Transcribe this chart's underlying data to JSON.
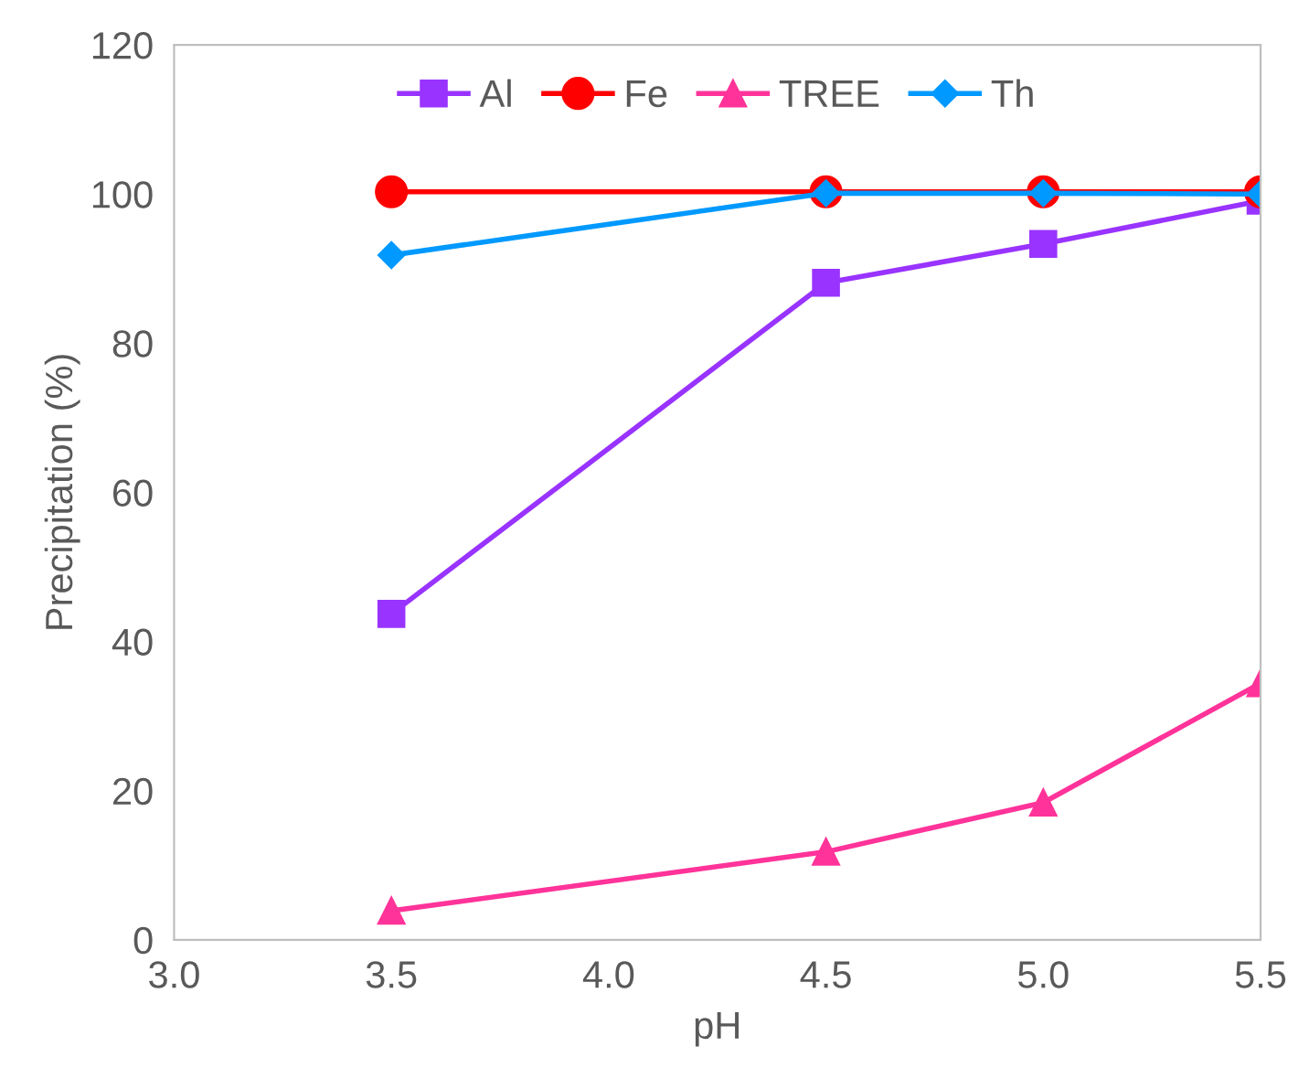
{
  "chart_data": {
    "type": "line",
    "xlabel": "pH",
    "ylabel": "Precipitation (%)",
    "x": [
      3.5,
      4.5,
      5.0,
      5.5
    ],
    "xlim": [
      3.0,
      5.5
    ],
    "xticks": [
      {
        "value": 3.0,
        "label": "3.0"
      },
      {
        "value": 3.5,
        "label": "3.5"
      },
      {
        "value": 4.0,
        "label": "4.0"
      },
      {
        "value": 4.5,
        "label": "4.5"
      },
      {
        "value": 5.0,
        "label": "5.0"
      },
      {
        "value": 5.5,
        "label": "5.5"
      }
    ],
    "ylim": [
      0,
      120
    ],
    "yticks": [
      0,
      20,
      40,
      60,
      80,
      100,
      120
    ],
    "grid": false,
    "legend": "top",
    "line_style": "solid",
    "series": [
      {
        "name": "Al",
        "color": "#9933ff",
        "marker": "square",
        "values": [
          43.7,
          88.1,
          93.3,
          99.1
        ]
      },
      {
        "name": "Fe",
        "color": "#ff0000",
        "marker": "circle",
        "values": [
          100.3,
          100.3,
          100.3,
          100.3
        ]
      },
      {
        "name": "TREE",
        "color": "#ff3399",
        "marker": "triangle",
        "values": [
          3.9,
          11.8,
          18.4,
          34.4
        ]
      },
      {
        "name": "Th",
        "color": "#0099ff",
        "marker": "diamond",
        "values": [
          91.8,
          100.1,
          100.1,
          100.0
        ]
      }
    ]
  }
}
